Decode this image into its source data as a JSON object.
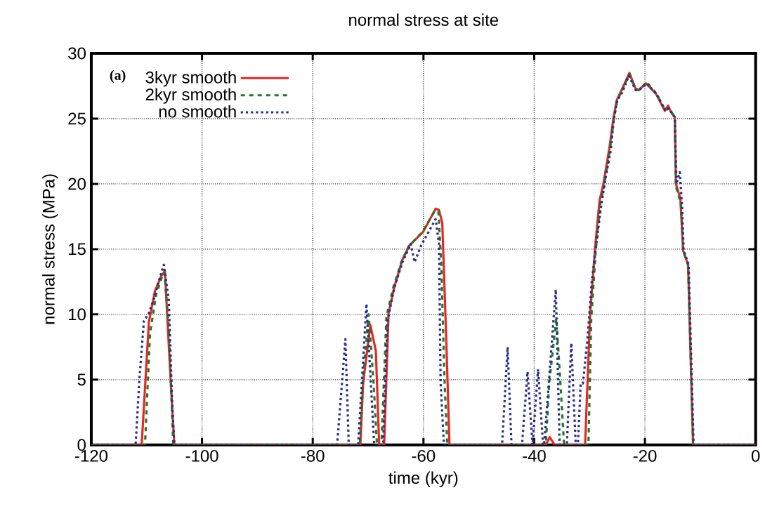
{
  "chart_data": {
    "type": "line",
    "title": "normal stress at site",
    "xlabel": "time (kyr)",
    "ylabel": "normal stress (MPa)",
    "annotations": [
      "(a)"
    ],
    "xlim": [
      -120,
      0
    ],
    "xticks": [
      -120,
      -100,
      -80,
      -60,
      -40,
      -20,
      0
    ],
    "ylim": [
      0,
      30
    ],
    "yticks": [
      0,
      5,
      10,
      15,
      20,
      25,
      30
    ],
    "grid": true,
    "legend": "top left",
    "series": [
      {
        "name": "3kyr smooth",
        "color": "#e8262a",
        "line_style": "solid",
        "x": [
          -120,
          -110.9,
          -109.6,
          -108.5,
          -107.3,
          -106.7,
          -105.7,
          -105.0,
          -71.4,
          -70.9,
          -69.6,
          -68.6,
          -68.0,
          -67.1,
          -66.3,
          -65.2,
          -63.8,
          -62.5,
          -60.1,
          -57.8,
          -57.2,
          -56.6,
          -55.9,
          -55.3,
          -37.9,
          -37.2,
          -36.3,
          -30.8,
          -29.9,
          -29.0,
          -28.2,
          -27.5,
          -26.4,
          -25.7,
          -25.1,
          -24.2,
          -22.8,
          -21.7,
          -21.1,
          -19.8,
          -18.0,
          -16.4,
          -15.8,
          -15.3,
          -14.6,
          -14.4,
          -13.6,
          -13.1,
          -12.2,
          -11.3,
          0
        ],
        "values": [
          0,
          0,
          9.4,
          11.8,
          13.0,
          13.3,
          5.2,
          0,
          0,
          4.7,
          9.2,
          7.2,
          0,
          0,
          10.1,
          12.2,
          14.2,
          15.3,
          16.3,
          18.1,
          18.0,
          17.0,
          8.3,
          0,
          0,
          0.6,
          0,
          0,
          10.0,
          15.1,
          18.7,
          20.0,
          22.8,
          25.0,
          26.4,
          27.2,
          28.5,
          27.3,
          27.2,
          27.7,
          26.9,
          25.6,
          26.0,
          25.5,
          25.1,
          20.0,
          18.9,
          14.9,
          13.8,
          0,
          0
        ]
      },
      {
        "name": "2kyr smooth",
        "color": "#1e7d1e",
        "line_style": "dashed",
        "x": [
          -120,
          -110.3,
          -109.4,
          -108.3,
          -107.3,
          -106.8,
          -106.0,
          -105.2,
          -71.5,
          -70.9,
          -69.9,
          -69.0,
          -68.4,
          -67.6,
          -66.7,
          -65.5,
          -64.0,
          -62.7,
          -60.2,
          -58.0,
          -57.3,
          -56.8,
          -56.2,
          -55.7,
          -37.9,
          -37.3,
          -36.0,
          -35.3,
          -34.6,
          -30.2,
          -29.7,
          -28.9,
          -28.1,
          -27.4,
          -26.3,
          -25.6,
          -25.0,
          -24.1,
          -22.8,
          -21.6,
          -21.0,
          -19.7,
          -17.9,
          -16.3,
          -15.7,
          -15.2,
          -14.6,
          -14.4,
          -13.5,
          -13.1,
          -12.2,
          -11.3,
          0
        ],
        "values": [
          0,
          0,
          8.5,
          11.5,
          12.8,
          13.2,
          9.0,
          0,
          0,
          5.0,
          10.0,
          4.7,
          0,
          0,
          9.8,
          12.0,
          14.0,
          15.2,
          16.3,
          17.9,
          17.9,
          14.0,
          5.0,
          0,
          0,
          4.7,
          9.7,
          5.0,
          0,
          0,
          9.6,
          14.8,
          18.4,
          19.8,
          22.7,
          25.0,
          26.4,
          27.2,
          28.4,
          27.2,
          27.2,
          27.8,
          26.9,
          25.6,
          25.8,
          25.5,
          25.1,
          19.8,
          18.5,
          14.9,
          13.8,
          0,
          0
        ]
      },
      {
        "name": "no smooth",
        "color": "#2b2b8c",
        "line_style": "dotted",
        "x": [
          -120,
          -112.0,
          -111.3,
          -110.5,
          -109.6,
          -108.6,
          -107.7,
          -106.9,
          -106.0,
          -105.4,
          -105.0,
          -75.6,
          -74.1,
          -73.5,
          -71.8,
          -70.3,
          -69.5,
          -68.9,
          -67.3,
          -66.5,
          -65.3,
          -63.8,
          -62.3,
          -61.6,
          -60.4,
          -57.8,
          -57.2,
          -56.9,
          -56.3,
          -45.8,
          -44.8,
          -44.1,
          -42.2,
          -41.2,
          -40.3,
          -39.3,
          -38.4,
          -38.2,
          -36.1,
          -35.4,
          -34.1,
          -33.3,
          -32.5,
          -32.1,
          -31.6,
          -31.2,
          -30.4,
          -29.6,
          -28.9,
          -28.0,
          -27.3,
          -26.2,
          -25.6,
          -25.0,
          -24.1,
          -22.9,
          -21.7,
          -21.0,
          -19.7,
          -17.9,
          -16.3,
          -15.7,
          -15.2,
          -14.6,
          -14.3,
          -13.7,
          -13.3,
          -13.0,
          -12.1,
          -11.2,
          0
        ],
        "values": [
          0,
          0,
          5.1,
          9.5,
          10.1,
          11.3,
          12.7,
          13.8,
          11.1,
          3.3,
          0,
          0,
          8.1,
          0,
          0,
          10.8,
          4.7,
          0,
          0,
          9.5,
          12.0,
          14.0,
          15.4,
          14.0,
          15.3,
          17.3,
          15.4,
          4.7,
          0,
          0,
          7.5,
          0,
          0,
          5.6,
          0,
          5.8,
          0,
          0,
          11.9,
          0,
          0,
          7.8,
          0,
          0,
          4.7,
          4.7,
          8.0,
          12.5,
          15.0,
          18.0,
          20.0,
          22.5,
          25.0,
          26.4,
          27.0,
          28.3,
          27.2,
          27.2,
          27.7,
          26.9,
          25.6,
          25.8,
          25.5,
          25.1,
          20.0,
          20.9,
          18.4,
          14.9,
          13.8,
          0,
          0
        ]
      }
    ]
  }
}
